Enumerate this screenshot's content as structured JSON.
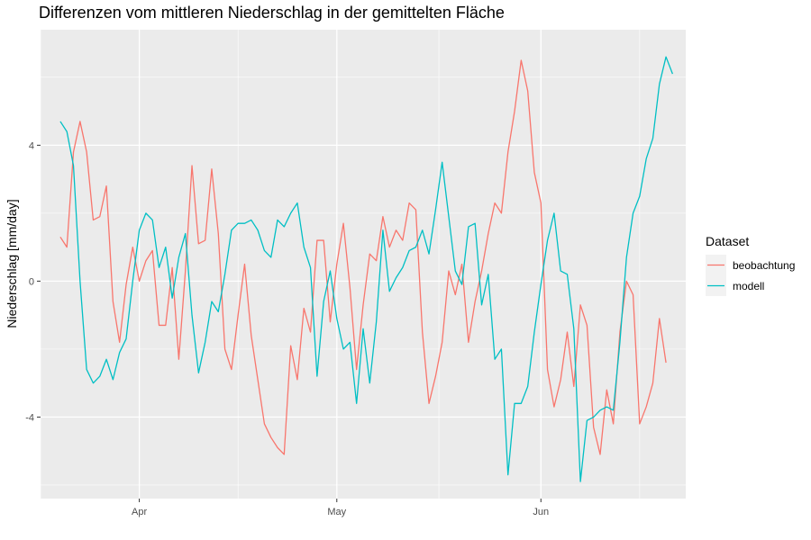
{
  "chart_data": {
    "type": "line",
    "title": "Differenzen vom mittleren Niederschlag in der gemittelten Fläche",
    "xlabel": "",
    "ylabel": "Niederschlag [mm/day]",
    "x_start": "2011-03-20",
    "x_range": [
      "2011-03-17",
      "2011-06-23"
    ],
    "ylim": [
      -6.4,
      7.4
    ],
    "x_ticks": [
      {
        "label": "Apr",
        "date": "2011-04-01"
      },
      {
        "label": "May",
        "date": "2011-05-01"
      },
      {
        "label": "Jun",
        "date": "2011-06-01"
      }
    ],
    "y_ticks": [
      -4,
      0,
      4
    ],
    "grid": true,
    "legend": {
      "title": "Dataset",
      "position": "right"
    },
    "series": [
      {
        "name": "beobachtung",
        "color": "#F8766D",
        "values": [
          1.3,
          1.0,
          3.8,
          4.7,
          3.8,
          1.8,
          1.9,
          2.8,
          -0.6,
          -1.8,
          -0.1,
          1.0,
          0.0,
          0.6,
          0.9,
          -1.3,
          -1.3,
          0.4,
          -2.3,
          0.3,
          3.4,
          1.1,
          1.2,
          3.3,
          1.4,
          -2.0,
          -2.6,
          -1.0,
          0.5,
          -1.6,
          -2.9,
          -4.2,
          -4.6,
          -4.9,
          -5.1,
          -1.9,
          -2.9,
          -0.8,
          -1.5,
          1.2,
          1.2,
          -1.2,
          0.5,
          1.7,
          -0.2,
          -2.6,
          -0.7,
          0.8,
          0.6,
          1.9,
          1.0,
          1.5,
          1.2,
          2.3,
          2.1,
          -1.5,
          -3.6,
          -2.8,
          -1.8,
          0.3,
          -0.4,
          0.5,
          -1.8,
          -0.6,
          0.3,
          1.4,
          2.3,
          2.0,
          3.8,
          5.0,
          6.5,
          5.6,
          3.2,
          2.3,
          -2.6,
          -3.7,
          -2.9,
          -1.5,
          -3.1,
          -0.7,
          -1.3,
          -4.3,
          -5.1,
          -3.2,
          -4.2,
          -1.5,
          0.0,
          -0.4,
          -4.2,
          -3.7,
          -3.0,
          -1.1,
          -2.4
        ]
      },
      {
        "name": "modell",
        "color": "#00BFC4",
        "values": [
          4.7,
          4.4,
          3.4,
          0.0,
          -2.6,
          -3.0,
          -2.8,
          -2.3,
          -2.9,
          -2.1,
          -1.7,
          0.0,
          1.5,
          2.0,
          1.8,
          0.4,
          1.0,
          -0.5,
          0.7,
          1.4,
          -1.0,
          -2.7,
          -1.8,
          -0.6,
          -0.9,
          0.2,
          1.5,
          1.7,
          1.7,
          1.8,
          1.5,
          0.9,
          0.7,
          1.8,
          1.6,
          2.0,
          2.3,
          1.0,
          0.4,
          -2.8,
          -0.6,
          0.3,
          -1.1,
          -2.0,
          -1.8,
          -3.6,
          -1.4,
          -3.0,
          -1.2,
          1.5,
          -0.3,
          0.1,
          0.4,
          0.9,
          1.0,
          1.5,
          0.8,
          2.1,
          3.5,
          1.9,
          0.3,
          -0.1,
          1.6,
          1.7,
          -0.7,
          0.2,
          -2.3,
          -2.0,
          -5.7,
          -3.6,
          -3.6,
          -3.1,
          -1.5,
          -0.1,
          1.2,
          2.0,
          0.3,
          0.2,
          -1.4,
          -5.9,
          -4.1,
          -4.0,
          -3.8,
          -3.7,
          -3.8,
          -1.8,
          0.7,
          2.0,
          2.5,
          3.6,
          4.2,
          5.8,
          6.6,
          6.1
        ]
      }
    ]
  }
}
